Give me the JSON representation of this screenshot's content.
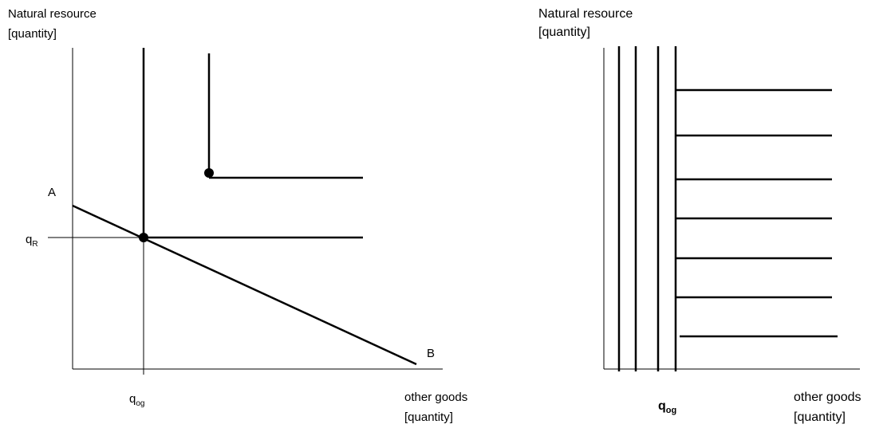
{
  "left": {
    "y_label": [
      "Natural resource",
      "[quantity]"
    ],
    "point_a": "A",
    "point_b": "B",
    "q_r": {
      "base": "q",
      "sub": "R"
    },
    "q_og": {
      "base": "q",
      "sub": "og"
    },
    "x_label": [
      "other goods",
      "[quantity]"
    ]
  },
  "right": {
    "y_label": [
      "Natural resource",
      "[quantity]"
    ],
    "q_og": {
      "base": "q",
      "sub": "og"
    },
    "x_label": [
      "other goods",
      "[quantity]"
    ]
  }
}
